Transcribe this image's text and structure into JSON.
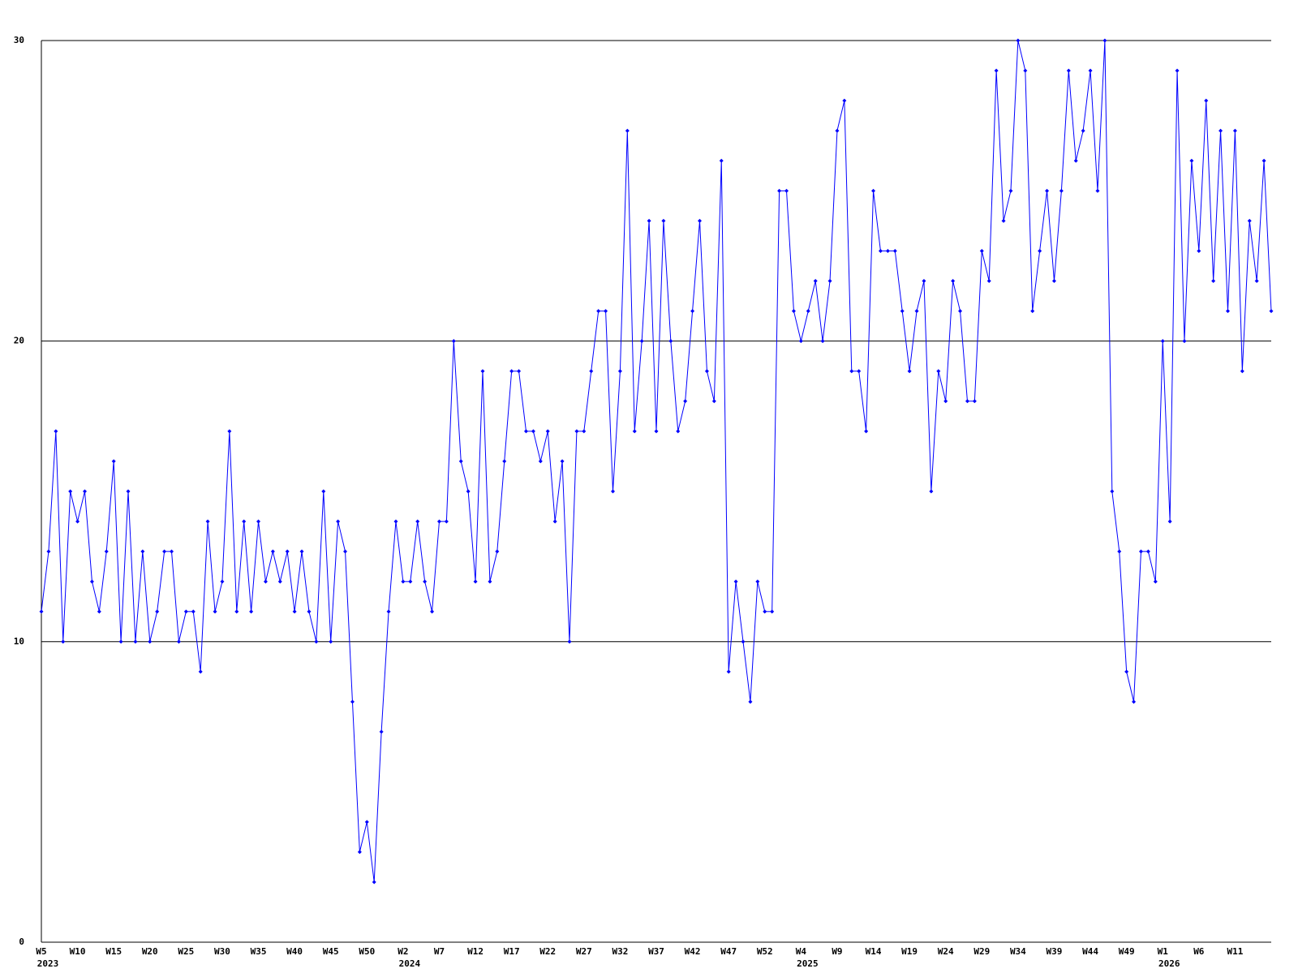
{
  "chart_data": {
    "type": "line",
    "categories": [
      "W5",
      null,
      null,
      null,
      null,
      "W10",
      null,
      null,
      null,
      null,
      "W15",
      null,
      null,
      null,
      null,
      "W20",
      null,
      null,
      null,
      null,
      "W25",
      null,
      null,
      null,
      null,
      "W30",
      null,
      null,
      null,
      null,
      "W35",
      null,
      null,
      null,
      null,
      "W40",
      null,
      null,
      null,
      null,
      "W45",
      null,
      null,
      null,
      null,
      "W50",
      null,
      null,
      null,
      null,
      "W2",
      null,
      null,
      null,
      null,
      "W7",
      null,
      null,
      null,
      null,
      "W12",
      null,
      null,
      null,
      null,
      "W17",
      null,
      null,
      null,
      null,
      "W22",
      null,
      null,
      null,
      null,
      "W27",
      null,
      null,
      null,
      null,
      "W32",
      null,
      null,
      null,
      null,
      "W37",
      null,
      null,
      null,
      null,
      "W42",
      null,
      null,
      null,
      null,
      "W47",
      null,
      null,
      null,
      null,
      "W52",
      null,
      null,
      null,
      null,
      "W4",
      null,
      null,
      null,
      null,
      "W9",
      null,
      null,
      null,
      null,
      "W14",
      null,
      null,
      null,
      null,
      "W19",
      null,
      null,
      null,
      null,
      "W24",
      null,
      null,
      null,
      null,
      "W29",
      null,
      null,
      null,
      null,
      "W34",
      null,
      null,
      null,
      null,
      "W39",
      null,
      null,
      null,
      null,
      "W44",
      null,
      null,
      null,
      null,
      "W49",
      null,
      null,
      null,
      null,
      "W1",
      null,
      null,
      null,
      null,
      "W6",
      null,
      null,
      null,
      null,
      "W11",
      null,
      null,
      null,
      null,
      null
    ],
    "category_years": [
      "2023",
      null,
      null,
      null,
      null,
      null,
      null,
      null,
      null,
      null,
      null,
      null,
      null,
      null,
      null,
      null,
      null,
      null,
      null,
      null,
      null,
      null,
      null,
      null,
      null,
      null,
      null,
      null,
      null,
      null,
      null,
      null,
      null,
      null,
      null,
      null,
      null,
      null,
      null,
      null,
      null,
      null,
      null,
      null,
      null,
      null,
      null,
      null,
      null,
      null,
      "2024",
      null,
      null,
      null,
      null,
      null,
      null,
      null,
      null,
      null,
      null,
      null,
      null,
      null,
      null,
      null,
      null,
      null,
      null,
      null,
      null,
      null,
      null,
      null,
      null,
      null,
      null,
      null,
      null,
      null,
      null,
      null,
      null,
      null,
      null,
      null,
      null,
      null,
      null,
      null,
      null,
      null,
      null,
      null,
      null,
      null,
      null,
      null,
      null,
      null,
      null,
      null,
      null,
      null,
      null,
      "2025",
      null,
      null,
      null,
      null,
      null,
      null,
      null,
      null,
      null,
      null,
      null,
      null,
      null,
      null,
      null,
      null,
      null,
      null,
      null,
      null,
      null,
      null,
      null,
      null,
      null,
      null,
      null,
      null,
      null,
      null,
      null,
      null,
      null,
      null,
      null,
      null,
      null,
      null,
      null,
      null,
      null,
      null,
      null,
      null,
      null,
      null,
      null,
      null,
      null,
      "2026",
      null,
      null,
      null,
      null,
      null,
      null,
      null,
      null,
      null,
      null,
      null,
      null,
      null,
      null,
      null
    ],
    "series": [
      {
        "color": "#0000ff",
        "values": [
          11,
          13,
          17,
          10,
          15,
          14,
          15,
          12,
          11,
          13,
          16,
          10,
          15,
          10,
          13,
          10,
          11,
          13,
          13,
          10,
          11,
          11,
          9,
          14,
          11,
          12,
          17,
          11,
          14,
          11,
          14,
          12,
          13,
          12,
          13,
          11,
          13,
          11,
          10,
          15,
          10,
          14,
          13,
          8,
          3,
          4,
          2,
          7,
          11,
          14,
          12,
          12,
          14,
          12,
          11,
          14,
          14,
          20,
          16,
          15,
          12,
          19,
          12,
          13,
          16,
          19,
          19,
          17,
          17,
          16,
          17,
          14,
          16,
          10,
          17,
          17,
          19,
          21,
          21,
          15,
          19,
          27,
          17,
          20,
          24,
          17,
          24,
          20,
          17,
          18,
          21,
          24,
          19,
          18,
          26,
          9,
          12,
          10,
          8,
          12,
          11,
          11,
          25,
          25,
          21,
          20,
          21,
          22,
          20,
          22,
          27,
          28,
          19,
          19,
          17,
          25,
          23,
          23,
          23,
          21,
          19,
          21,
          22,
          15,
          19,
          18,
          22,
          21,
          18,
          18,
          23,
          22,
          29,
          24,
          25,
          30,
          29,
          21,
          23,
          25,
          22,
          25,
          29,
          26,
          27,
          29,
          25,
          30,
          15,
          13,
          9,
          8,
          13,
          13,
          12,
          20,
          14,
          29,
          20,
          26,
          23,
          28,
          22,
          27,
          21,
          27,
          19,
          24,
          22,
          26,
          21
        ]
      }
    ],
    "ylim": [
      0,
      30
    ],
    "yticks": [
      0,
      10,
      20,
      30
    ],
    "grid": true
  }
}
